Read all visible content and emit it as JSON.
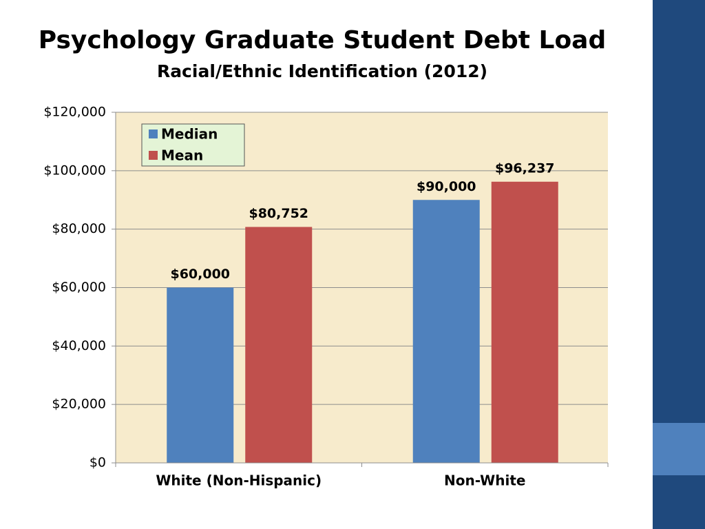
{
  "chart_data": {
    "type": "bar",
    "title": "Psychology Graduate Student Debt Load",
    "subtitle": "Racial/Ethnic Identification (2012)",
    "categories": [
      "White (Non-Hispanic)",
      "Non-White"
    ],
    "series": [
      {
        "name": "Median",
        "color": "#4f81bd",
        "values": [
          60000,
          90000
        ],
        "value_labels": [
          "$60,000",
          "$90,000"
        ]
      },
      {
        "name": "Mean",
        "color": "#c0504d",
        "values": [
          80752,
          96237
        ],
        "value_labels": [
          "$80,752",
          "$96,237"
        ]
      }
    ],
    "ylim": [
      0,
      120000
    ],
    "yticks": [
      {
        "value": 0,
        "label": "$0"
      },
      {
        "value": 20000,
        "label": "$20,000"
      },
      {
        "value": 40000,
        "label": "$40,000"
      },
      {
        "value": 60000,
        "label": "$60,000"
      },
      {
        "value": 80000,
        "label": "$80,000"
      },
      {
        "value": 100000,
        "label": "$100,000"
      },
      {
        "value": 120000,
        "label": "$120,000"
      }
    ],
    "grid": true,
    "legend": "upper left"
  }
}
